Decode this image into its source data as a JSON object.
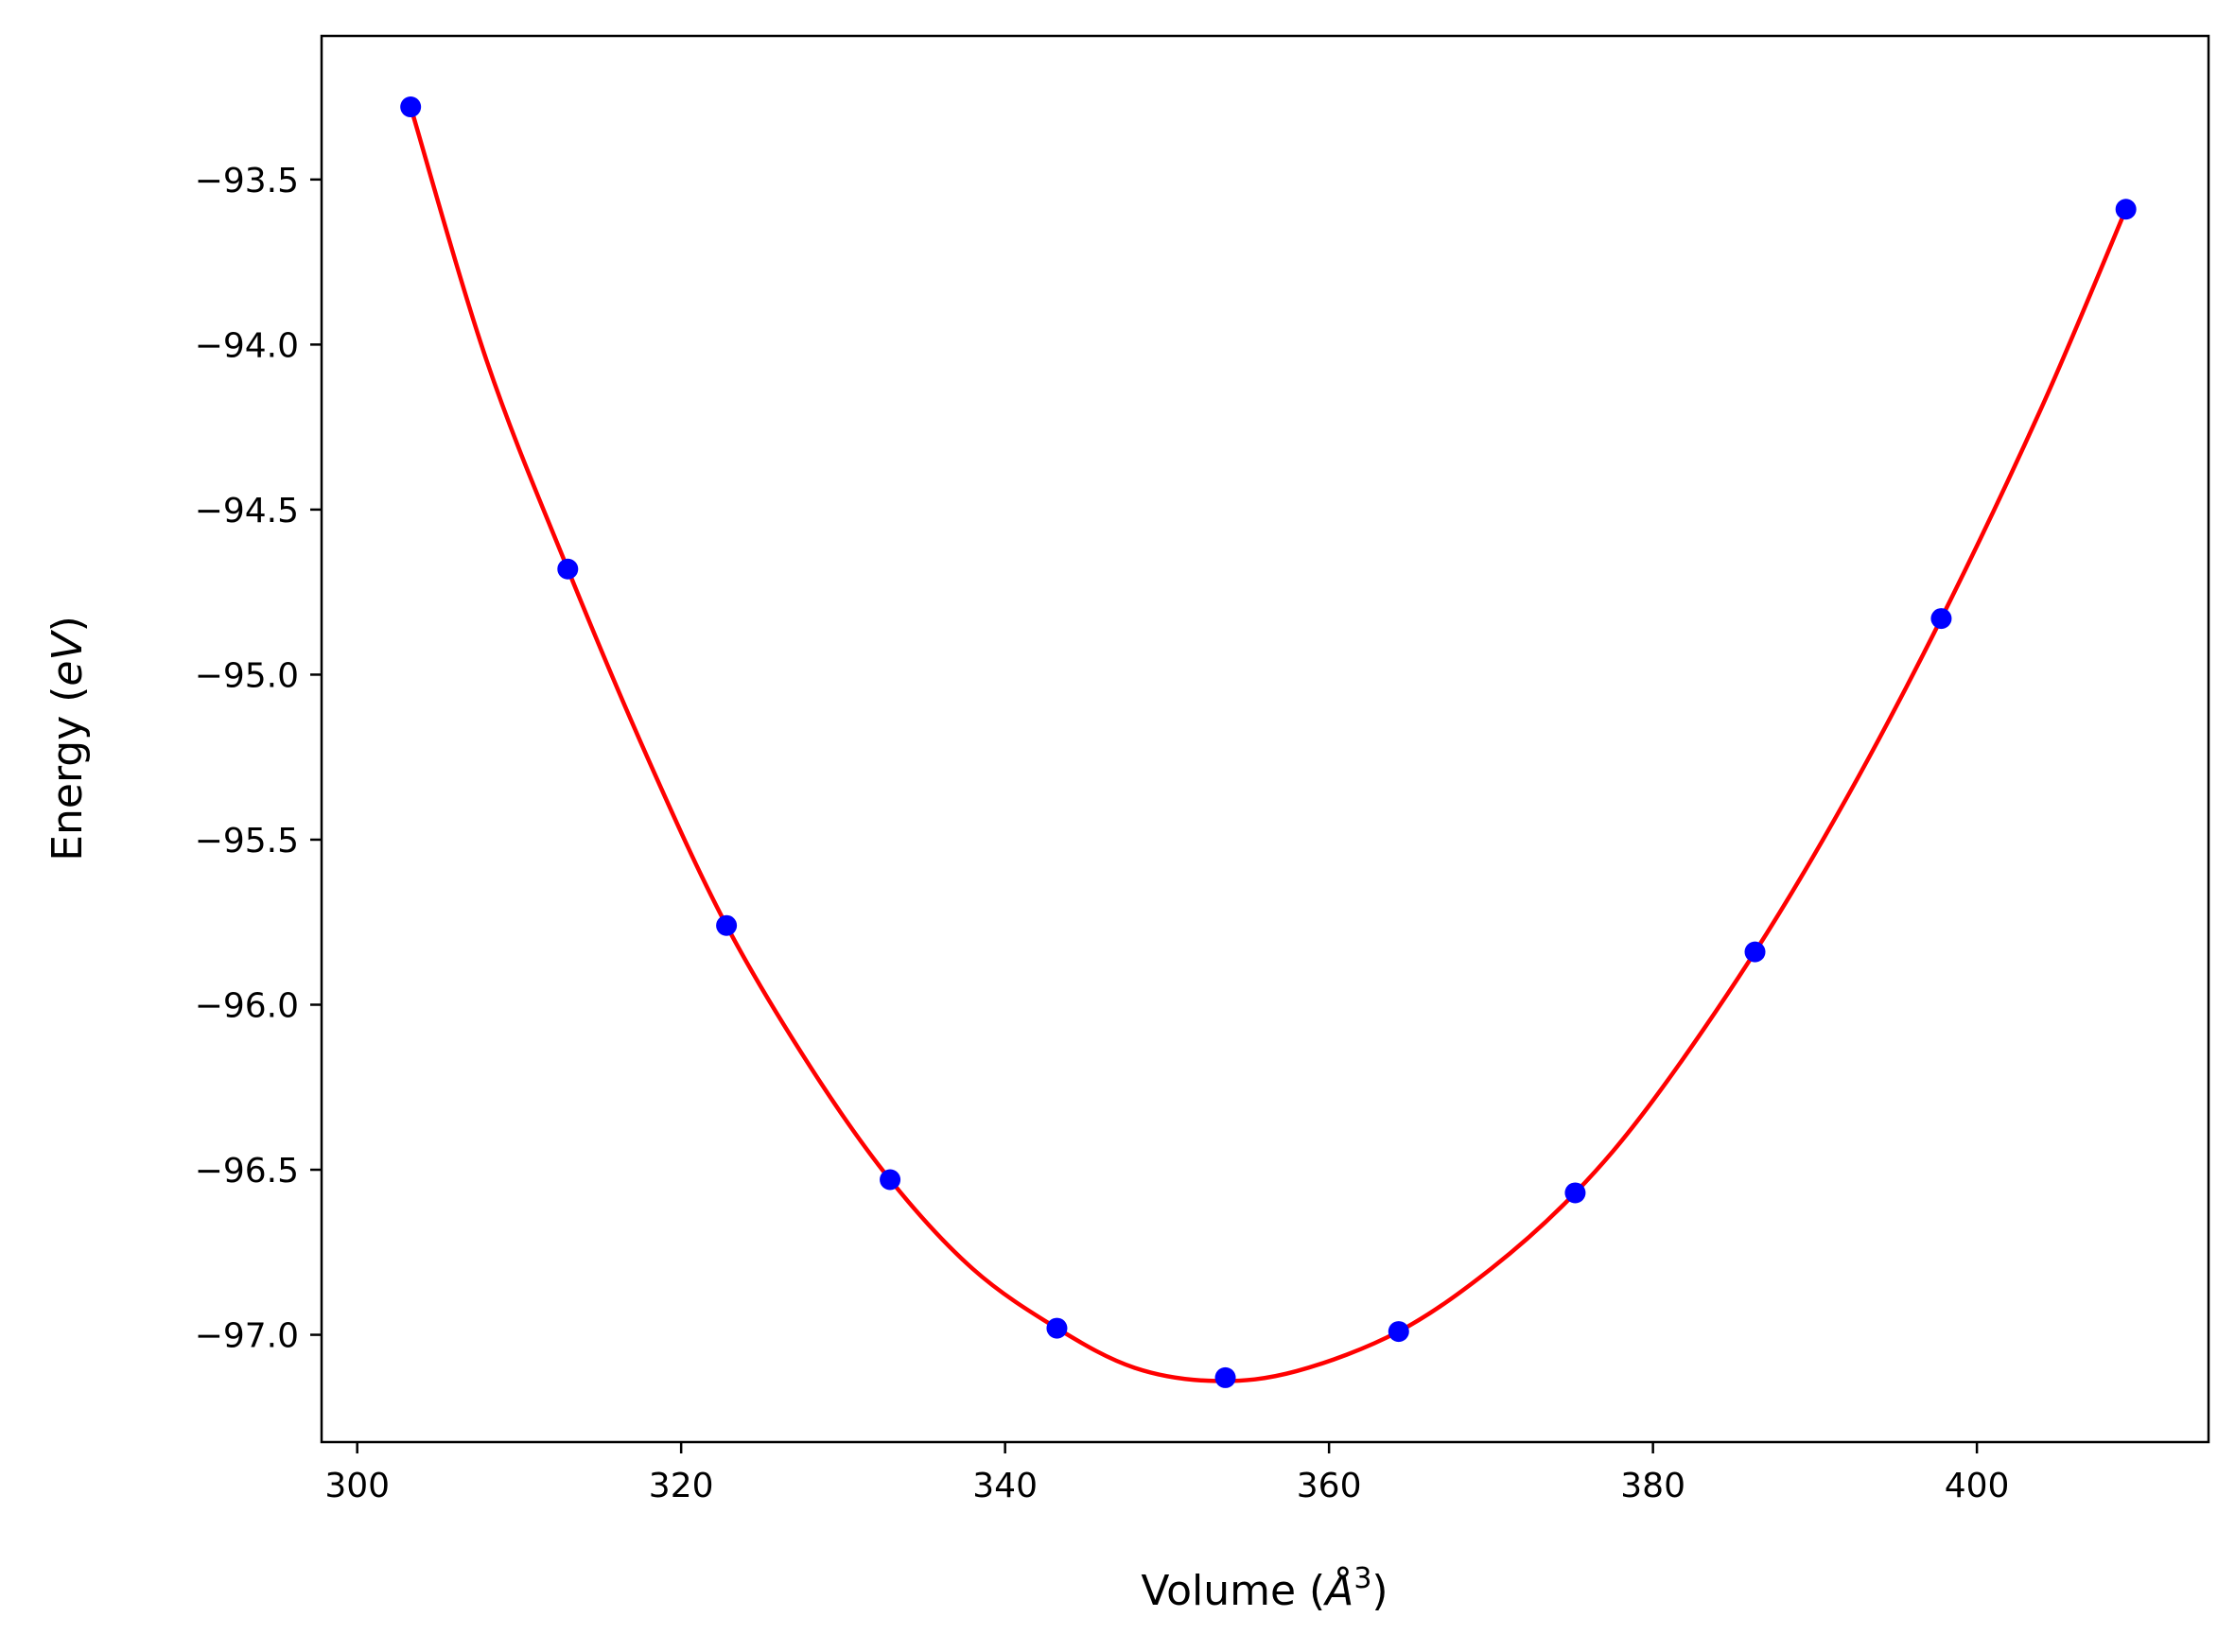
{
  "chart_data": {
    "type": "scatter",
    "xlabel": "Volume (",
    "xlabel_symbol": "Å",
    "xlabel_exp": "3",
    "xlabel_close": ")",
    "ylabel": "Energy (",
    "ylabel_unit": "eV",
    "ylabel_close": ")",
    "xlim": [
      297.8,
      414.3
    ],
    "ylim": [
      -97.325,
      -93.065
    ],
    "xticks": [
      300,
      320,
      340,
      360,
      380,
      400
    ],
    "xtick_labels": [
      "300",
      "320",
      "340",
      "360",
      "380",
      "400"
    ],
    "yticks": [
      -93.5,
      -94.0,
      -94.5,
      -95.0,
      -95.5,
      -96.0,
      -96.5,
      -97.0
    ],
    "ytick_labels": [
      "−93.5",
      "−94.0",
      "−94.5",
      "−95.0",
      "−95.5",
      "−96.0",
      "−96.5",
      "−97.0"
    ],
    "grid": false,
    "series": [
      {
        "kind": "points",
        "color": "#0000ff",
        "x": [
          303.3,
          313.0,
          322.8,
          332.9,
          343.2,
          353.6,
          364.3,
          375.2,
          386.3,
          397.8,
          409.2
        ],
        "y": [
          -93.28,
          -94.68,
          -95.76,
          -96.53,
          -96.98,
          -97.13,
          -96.99,
          -96.57,
          -95.84,
          -94.83,
          -93.59
        ]
      },
      {
        "kind": "fit-curve",
        "color": "#ff0000",
        "x": [
          303.3,
          308.0,
          313.0,
          318.0,
          322.8,
          328.0,
          332.9,
          338.0,
          343.2,
          348.0,
          353.0,
          358.0,
          364.3,
          370.0,
          375.2,
          380.0,
          386.3,
          392.0,
          397.8,
          404.0,
          409.2
        ],
        "y": [
          -93.28,
          -94.05,
          -94.68,
          -95.26,
          -95.76,
          -96.19,
          -96.53,
          -96.8,
          -96.98,
          -97.1,
          -97.14,
          -97.11,
          -96.99,
          -96.8,
          -96.57,
          -96.29,
          -95.84,
          -95.37,
          -94.83,
          -94.19,
          -93.59
        ]
      }
    ]
  }
}
